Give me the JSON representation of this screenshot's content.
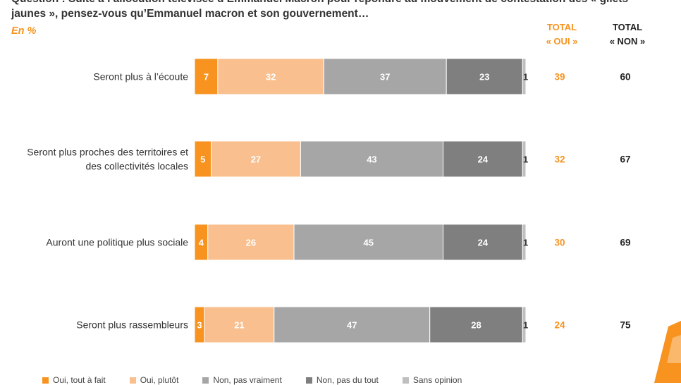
{
  "header": {
    "question": "Question : Suite à l’allocution télévisée d’Emmanuel Macron pour répondre au mouvement de contestation des « gilets jaunes », pensez-vous qu’Emmanuel macron et son gouvernement…",
    "unit": "En %",
    "total_oui_label_1": "TOTAL",
    "total_oui_label_2": "« OUI »",
    "total_non_label_1": "TOTAL",
    "total_non_label_2": "« NON »"
  },
  "colors": {
    "oui_tout_a_fait": "#F7931E",
    "oui_plutot": "#F9BF8E",
    "non_plutot_pas": "#A6A6A6",
    "non_pas_du_tout": "#7F7F7F",
    "sans_opinion": "#BFBFBF",
    "total_oui_text": "#F7931E",
    "total_non_text": "#222222"
  },
  "legend": {
    "items": [
      {
        "label": "Oui, tout à fait",
        "color": "#F7931E"
      },
      {
        "label": "Oui, plutôt",
        "color": "#F9BF8E"
      },
      {
        "label": "Non, pas vraiment",
        "color": "#A6A6A6"
      },
      {
        "label": "Non, pas du tout",
        "color": "#7F7F7F"
      },
      {
        "label": "Sans opinion",
        "color": "#BFBFBF"
      }
    ]
  },
  "chart_data": {
    "type": "bar",
    "orientation": "horizontal",
    "stacked": true,
    "categories": [
      "Seront plus à l’écoute",
      "Seront plus proches des territoires et des collectivités locales",
      "Auront une politique plus sociale",
      "Seront plus rassembleurs"
    ],
    "series": [
      {
        "values": [
          7,
          5,
          4,
          3
        ]
      },
      {
        "values": [
          32,
          27,
          26,
          21
        ]
      },
      {
        "values": [
          37,
          43,
          45,
          47
        ]
      },
      {
        "values": [
          23,
          24,
          24,
          28
        ]
      },
      {
        "values": [
          1,
          1,
          1,
          1
        ]
      }
    ],
    "total_oui": [
      39,
      32,
      30,
      24
    ],
    "total_non": [
      60,
      67,
      69,
      75
    ],
    "xlim": [
      0,
      100
    ]
  }
}
